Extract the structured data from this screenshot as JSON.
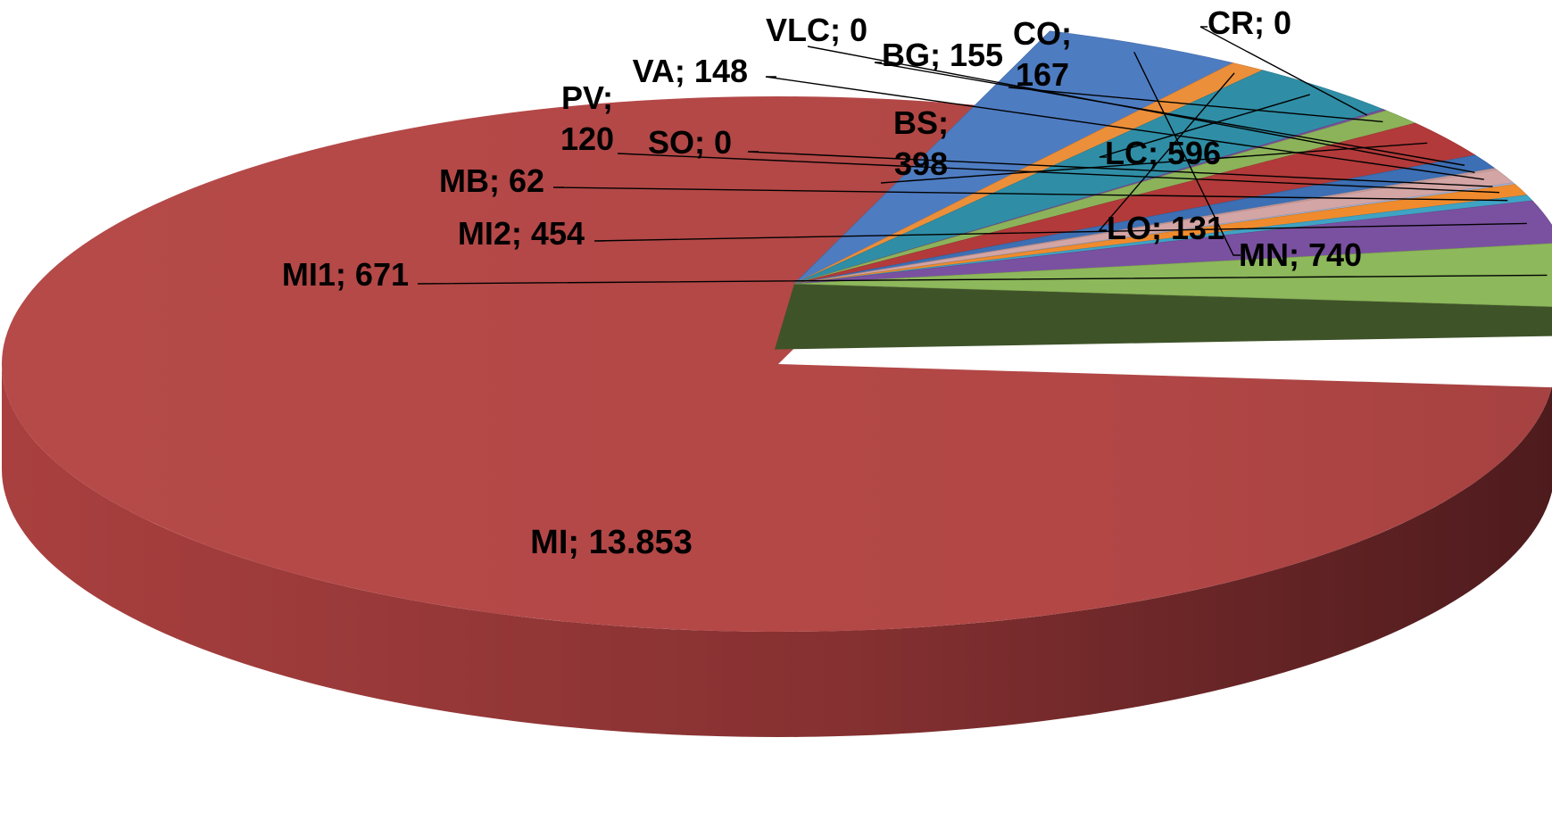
{
  "chart_data": {
    "type": "pie",
    "title": "",
    "legend": "none",
    "exploded": [
      "MI"
    ],
    "slices": [
      {
        "name": "MI",
        "value": 13853,
        "label": "MI; 13.853",
        "color": "#b44a48"
      },
      {
        "name": "MN",
        "value": 740,
        "label": "MN; 740",
        "color": "#4e7cc1"
      },
      {
        "name": "LO",
        "value": 131,
        "label": "LO; 131",
        "color": "#ec8f3a"
      },
      {
        "name": "LC",
        "value": 596,
        "label": "LC; 596",
        "color": "#2f8ea6"
      },
      {
        "name": "CR",
        "value": 0,
        "label": "CR; 0",
        "color": "#7c4f9c"
      },
      {
        "name": "CO",
        "value": 167,
        "label": "CO; 167",
        "color": "#8cb35a"
      },
      {
        "name": "BS",
        "value": 398,
        "label": "BS; 398",
        "color": "#b33a3a"
      },
      {
        "name": "BG",
        "value": 155,
        "label": "BG; 155",
        "color": "#3c6fb4"
      },
      {
        "name": "VLC",
        "value": 0,
        "label": "VLC; 0",
        "color": "#c9a0a0"
      },
      {
        "name": "VA",
        "value": 148,
        "label": "VA; 148",
        "color": "#d4a5a5"
      },
      {
        "name": "SO",
        "value": 0,
        "label": "SO; 0",
        "color": "#a5b4d4"
      },
      {
        "name": "PV",
        "value": 120,
        "label": "PV; 120",
        "color": "#f08b2d"
      },
      {
        "name": "MB",
        "value": 62,
        "label": "MB; 62",
        "color": "#3fa3c4"
      },
      {
        "name": "MI2",
        "value": 454,
        "label": "MI2; 454",
        "color": "#7a51a1"
      },
      {
        "name": "MI1",
        "value": 671,
        "label": "MI1; 671",
        "color": "#8db85b"
      }
    ]
  }
}
